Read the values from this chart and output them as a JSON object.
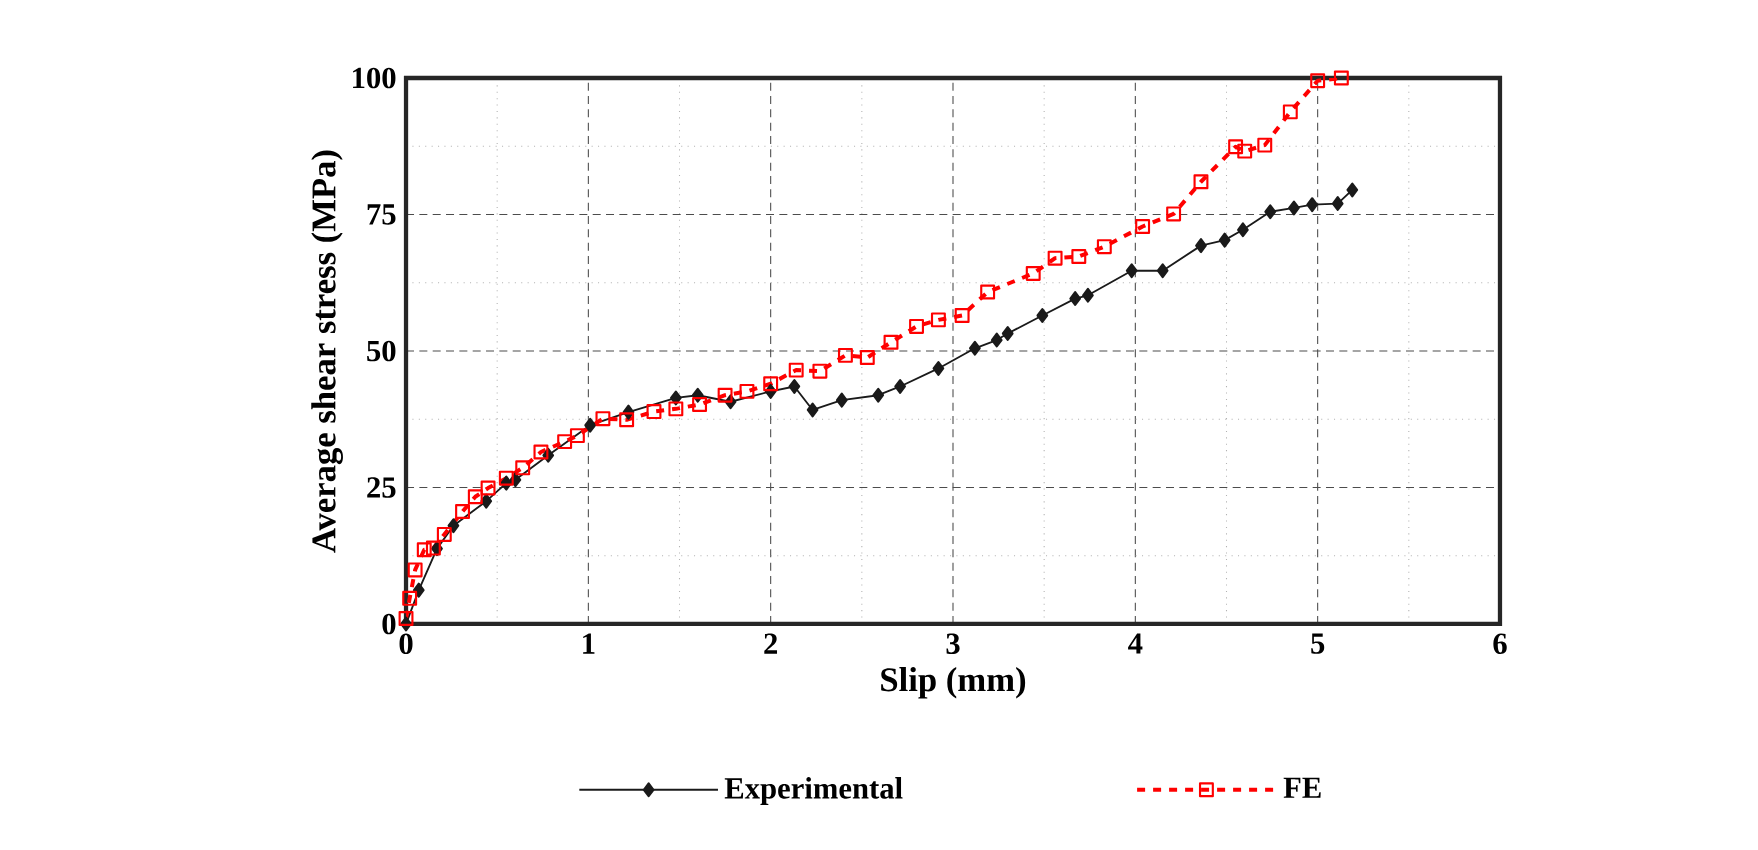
{
  "chart_data": {
    "type": "line",
    "xlabel": "Slip (mm)",
    "ylabel": "Average shear stress (MPa)",
    "xlim": [
      0,
      6
    ],
    "ylim": [
      0,
      100
    ],
    "xticks": [
      0,
      1,
      2,
      3,
      4,
      5,
      6
    ],
    "yticks": [
      0,
      25,
      50,
      75,
      100
    ],
    "grid": true,
    "legend": "bottom",
    "series": [
      {
        "name": "Experimental",
        "color": "#1a1a1a",
        "marker": "diamond",
        "line_style": "solid",
        "x": [
          0,
          0.07,
          0.17,
          0.26,
          0.44,
          0.55,
          0.6,
          0.78,
          1.01,
          1.22,
          1.48,
          1.6,
          1.78,
          2.0,
          2.13,
          2.23,
          2.39,
          2.59,
          2.71,
          2.92,
          3.12,
          3.24,
          3.3,
          3.49,
          3.67,
          3.74,
          3.98,
          4.15,
          4.36,
          4.49,
          4.59,
          4.74,
          4.87,
          4.97,
          5.11,
          5.19
        ],
        "values": [
          0,
          6.2,
          13.8,
          18,
          22.5,
          25.8,
          26.4,
          30.9,
          36.4,
          38.8,
          41.4,
          41.9,
          40.7,
          42.6,
          43.5,
          39.2,
          41,
          41.9,
          43.5,
          46.8,
          50.5,
          52,
          53.2,
          56.5,
          59.6,
          60.2,
          64.7,
          64.7,
          69.3,
          70.3,
          72.2,
          75.5,
          76.2,
          76.8,
          77,
          79.5
        ]
      },
      {
        "name": "FE",
        "color": "#ff0000",
        "marker": "square",
        "line_style": "dashed",
        "x": [
          0,
          0.02,
          0.05,
          0.1,
          0.15,
          0.21,
          0.31,
          0.38,
          0.45,
          0.55,
          0.64,
          0.74,
          0.87,
          0.94,
          1.08,
          1.21,
          1.36,
          1.48,
          1.61,
          1.75,
          1.87,
          2.0,
          2.14,
          2.27,
          2.41,
          2.53,
          2.66,
          2.8,
          2.92,
          3.05,
          3.19,
          3.44,
          3.56,
          3.69,
          3.83,
          4.04,
          4.21,
          4.36,
          4.55,
          4.6,
          4.71,
          4.85,
          5.0,
          5.13
        ],
        "values": [
          1,
          4.7,
          9.9,
          13.6,
          13.9,
          16.4,
          20.6,
          23.3,
          24.9,
          26.7,
          28.6,
          31.5,
          33.4,
          34.5,
          37.6,
          37.4,
          38.9,
          39.4,
          40.2,
          41.9,
          42.6,
          44,
          46.5,
          46.3,
          49.2,
          48.8,
          51.6,
          54.5,
          55.7,
          56.5,
          60.8,
          64.2,
          67,
          67.3,
          69.1,
          72.8,
          75.1,
          81,
          87.4,
          86.6,
          87.7,
          93.8,
          99.5,
          100
        ]
      }
    ]
  }
}
